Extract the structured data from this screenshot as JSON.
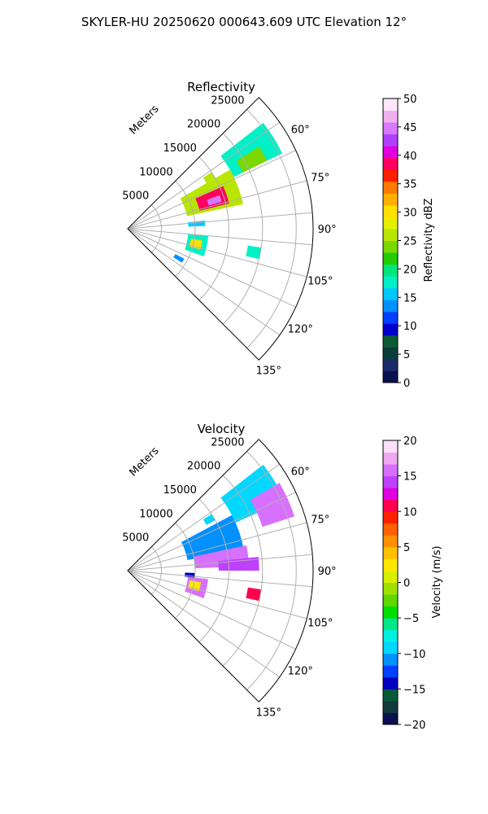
{
  "figure": {
    "suptitle": "SKYLER-HU  20250620  000643.609 UTC Elevation 12°"
  },
  "chart_data": [
    {
      "type": "heatmap",
      "projection": "polar-sector",
      "title": "Reflectivity",
      "range_label": "Meters",
      "range_ticks": [
        5000,
        10000,
        15000,
        20000,
        25000
      ],
      "range_tick_labels": [
        "5000",
        "10000",
        "15000",
        "20000",
        "25000"
      ],
      "range_max": 27500,
      "azimuth_range_deg": [
        45,
        135
      ],
      "azimuth_ticks_deg": [
        60,
        75,
        90,
        105,
        120,
        135
      ],
      "azimuth_tick_labels": [
        "60°",
        "75°",
        "90°",
        "105°",
        "120°",
        "135°"
      ],
      "grid": true,
      "colorbar": {
        "label": "Reflectivity dBZ",
        "min": 0,
        "max": 50,
        "ticks": [
          0,
          5,
          10,
          15,
          20,
          25,
          30,
          35,
          40,
          45,
          50
        ],
        "tick_labels": [
          "0",
          "5",
          "10",
          "15",
          "20",
          "25",
          "30",
          "35",
          "40",
          "45",
          "50"
        ],
        "colormap": "NWSRef",
        "colors": [
          "#0b1050",
          "#1a2b6b",
          "#0a3c3c",
          "#0d5b35",
          "#0000cc",
          "#0040ff",
          "#0090ff",
          "#00c8ff",
          "#00f0c8",
          "#00e67a",
          "#22cc00",
          "#7ad800",
          "#b8e600",
          "#e8f000",
          "#ffe000",
          "#ffb000",
          "#ff7a00",
          "#ff2000",
          "#ff0060",
          "#e000e0",
          "#b040ff",
          "#d878ff",
          "#f0b0f0",
          "#fde8fa"
        ]
      },
      "echoes": [
        {
          "az": [
            52,
            64
          ],
          "r": [
            17500,
            25500
          ],
          "value": 18
        },
        {
          "az": [
            58,
            64
          ],
          "r": [
            19000,
            23000
          ],
          "value": 24
        },
        {
          "az": [
            60,
            78
          ],
          "r": [
            9000,
            17500
          ],
          "value": 26
        },
        {
          "az": [
            66,
            76
          ],
          "r": [
            11000,
            15500
          ],
          "value": 38
        },
        {
          "az": [
            70,
            74
          ],
          "r": [
            12500,
            14500
          ],
          "value": 44
        },
        {
          "az": [
            95,
            110
          ],
          "r": [
            9000,
            12000
          ],
          "value": 18
        },
        {
          "az": [
            99,
            106
          ],
          "r": [
            9500,
            11200
          ],
          "value": 30
        },
        {
          "az": [
            84,
            88
          ],
          "r": [
            9000,
            11500
          ],
          "value": 15
        },
        {
          "az": [
            98,
            103
          ],
          "r": [
            18000,
            20000
          ],
          "value": 18
        },
        {
          "az": [
            56,
            60
          ],
          "r": [
            13500,
            15000
          ],
          "value": 26
        },
        {
          "az": [
            118,
            122
          ],
          "r": [
            8000,
            9500
          ],
          "value": 14
        }
      ]
    },
    {
      "type": "heatmap",
      "projection": "polar-sector",
      "title": "Velocity",
      "range_label": "Meters",
      "range_ticks": [
        5000,
        10000,
        15000,
        20000,
        25000
      ],
      "range_tick_labels": [
        "5000",
        "10000",
        "15000",
        "20000",
        "25000"
      ],
      "range_max": 27500,
      "azimuth_range_deg": [
        45,
        135
      ],
      "azimuth_ticks_deg": [
        60,
        75,
        90,
        105,
        120,
        135
      ],
      "azimuth_tick_labels": [
        "60°",
        "75°",
        "90°",
        "105°",
        "120°",
        "135°"
      ],
      "grid": true,
      "colorbar": {
        "label": "Velocity (m/s)",
        "min": -20,
        "max": 20,
        "ticks": [
          -20,
          -15,
          -10,
          -5,
          0,
          5,
          10,
          15,
          20
        ],
        "tick_labels": [
          "−20",
          "−15",
          "−10",
          "−5",
          "0",
          "5",
          "10",
          "15",
          "20"
        ],
        "colormap": "NWSVel",
        "colors": [
          "#0b1050",
          "#113a3a",
          "#0a5a3a",
          "#0000c0",
          "#0040ff",
          "#0090ff",
          "#00d8ff",
          "#00f0e0",
          "#00e88a",
          "#00e000",
          "#60d800",
          "#a0e000",
          "#d8f000",
          "#ffe800",
          "#ffc000",
          "#ff9000",
          "#ff6000",
          "#ff2000",
          "#ff0050",
          "#e000e0",
          "#c040ff",
          "#d870ff",
          "#f0a8f0",
          "#fde0fa"
        ]
      },
      "echoes": [
        {
          "az": [
            52,
            66
          ],
          "r": [
            17500,
            25500
          ],
          "value": -9
        },
        {
          "az": [
            60,
            72
          ],
          "r": [
            21000,
            26000
          ],
          "value": 15
        },
        {
          "az": [
            62,
            80
          ],
          "r": [
            9000,
            17500
          ],
          "value": -11
        },
        {
          "az": [
            78,
            88
          ],
          "r": [
            10000,
            18000
          ],
          "value": 15
        },
        {
          "az": [
            84,
            90
          ],
          "r": [
            13500,
            19500
          ],
          "value": 14
        },
        {
          "az": [
            96,
            110
          ],
          "r": [
            9000,
            12000
          ],
          "value": 16
        },
        {
          "az": [
            99,
            106
          ],
          "r": [
            9300,
            11000
          ],
          "value": 3
        },
        {
          "az": [
            92,
            96
          ],
          "r": [
            8500,
            10000
          ],
          "value": -14
        },
        {
          "az": [
            98,
            103
          ],
          "r": [
            18000,
            20000
          ],
          "value": 11
        },
        {
          "az": [
            56,
            60
          ],
          "r": [
            13500,
            15000
          ],
          "value": -10
        }
      ]
    }
  ]
}
